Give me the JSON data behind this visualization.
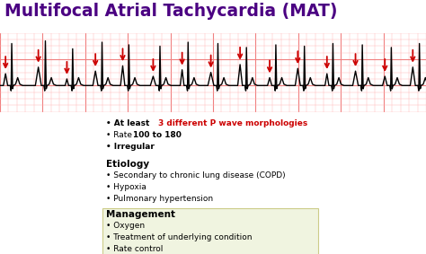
{
  "title": "Multifocal Atrial Tachycardia (MAT)",
  "title_color": "#4B0082",
  "title_fontsize": 13.5,
  "ecg_bg_color": "#FFECEC",
  "grid_color_major": "#F08080",
  "grid_color_minor": "#FFB0B0",
  "ecg_line_color": "#000000",
  "arrow_color": "#CC0000",
  "highlight_color": "#CC0000",
  "management_box_color": "#F0F4E0",
  "management_box_edge": "#CCCC88",
  "fig_width": 4.74,
  "fig_height": 2.83,
  "dpi": 100,
  "etiology_header": "Etiology",
  "etiology_bullets": [
    "Secondary to chronic lung disease (COPD)",
    "Hypoxia",
    "Pulmonary hypertension"
  ],
  "management_header": "Management",
  "management_bullets": [
    "Oxygen",
    "Treatment of underlying condition",
    "Rate control"
  ]
}
